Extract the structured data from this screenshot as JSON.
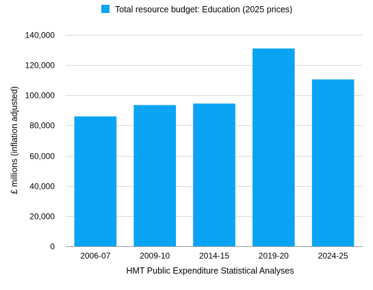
{
  "chart_data": {
    "type": "bar",
    "categories": [
      "2006-07",
      "2009-10",
      "2014-15",
      "2019-20",
      "2024-25"
    ],
    "series": [
      {
        "name": "Total resource budget: Education (2025 prices)",
        "values": [
          86000,
          93500,
          94500,
          131000,
          110500
        ]
      }
    ],
    "xlabel": "HMT Public Expenditure Statistical Analyses",
    "ylabel": "£ millions (inflation adjusted)",
    "ylim": [
      0,
      140000
    ],
    "yticks": [
      0,
      20000,
      40000,
      60000,
      80000,
      100000,
      120000,
      140000
    ],
    "ytick_labels": [
      "0",
      "20,000",
      "40,000",
      "60,000",
      "80,000",
      "100,000",
      "120,000",
      "140,000"
    ],
    "grid": true,
    "legend_position": "top-center",
    "colors": {
      "bar": "#0ba3f4"
    }
  }
}
